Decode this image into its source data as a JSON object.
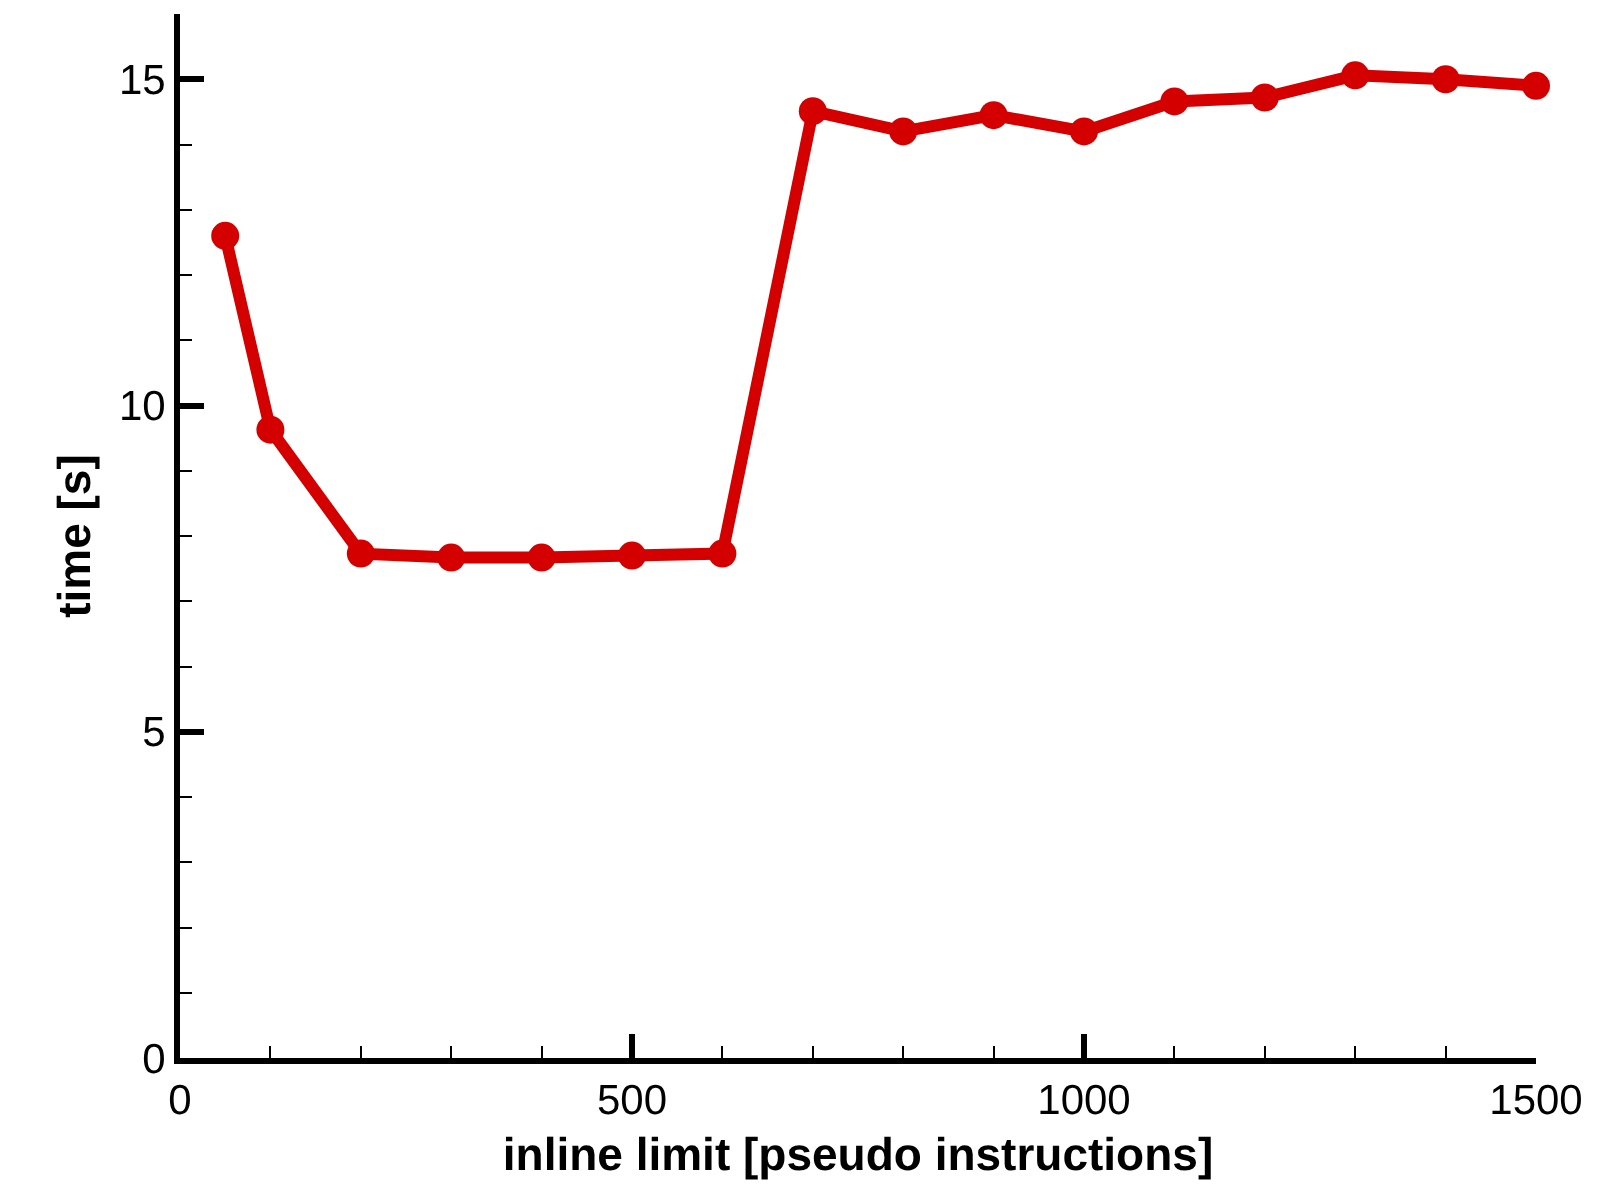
{
  "chart_data": {
    "type": "line",
    "xlabel": "inline limit [pseudo instructions]",
    "ylabel": "time [s]",
    "x": [
      50,
      100,
      200,
      300,
      400,
      500,
      600,
      700,
      800,
      900,
      1000,
      1100,
      1200,
      1300,
      1400,
      1500
    ],
    "series": [
      {
        "color": "#d40000",
        "values": [
          12.6,
          9.63,
          7.73,
          7.67,
          7.67,
          7.7,
          7.73,
          14.51,
          14.2,
          14.45,
          14.2,
          14.66,
          14.72,
          15.06,
          15.0,
          14.9
        ]
      }
    ],
    "xlim": [
      0,
      1500
    ],
    "ylim": [
      0,
      16
    ],
    "xticks": [
      0,
      {
        "value": 100,
        "label": null
      },
      {
        "value": 200,
        "label": null
      },
      {
        "value": 300,
        "label": null
      },
      {
        "value": 400,
        "label": null
      },
      500,
      {
        "value": 600,
        "label": null
      },
      {
        "value": 700,
        "label": null
      },
      {
        "value": 800,
        "label": null
      },
      {
        "value": 900,
        "label": null
      },
      1000,
      {
        "value": 1100,
        "label": null
      },
      {
        "value": 1200,
        "label": null
      },
      {
        "value": 1300,
        "label": null
      },
      {
        "value": 1400,
        "label": null
      },
      1500
    ],
    "yticks": [
      0,
      {
        "value": 1,
        "label": null
      },
      {
        "value": 2,
        "label": null
      },
      {
        "value": 3,
        "label": null
      },
      {
        "value": 4,
        "label": null
      },
      5,
      {
        "value": 6,
        "label": null
      },
      {
        "value": 7,
        "label": null
      },
      {
        "value": 8,
        "label": null
      },
      {
        "value": 9,
        "label": null
      },
      10,
      {
        "value": 11,
        "label": null
      },
      {
        "value": 12,
        "label": null
      },
      {
        "value": 13,
        "label": null
      },
      {
        "value": 14,
        "label": null
      },
      15
    ],
    "grid": false,
    "marker": "circle",
    "line_style": "solid"
  }
}
